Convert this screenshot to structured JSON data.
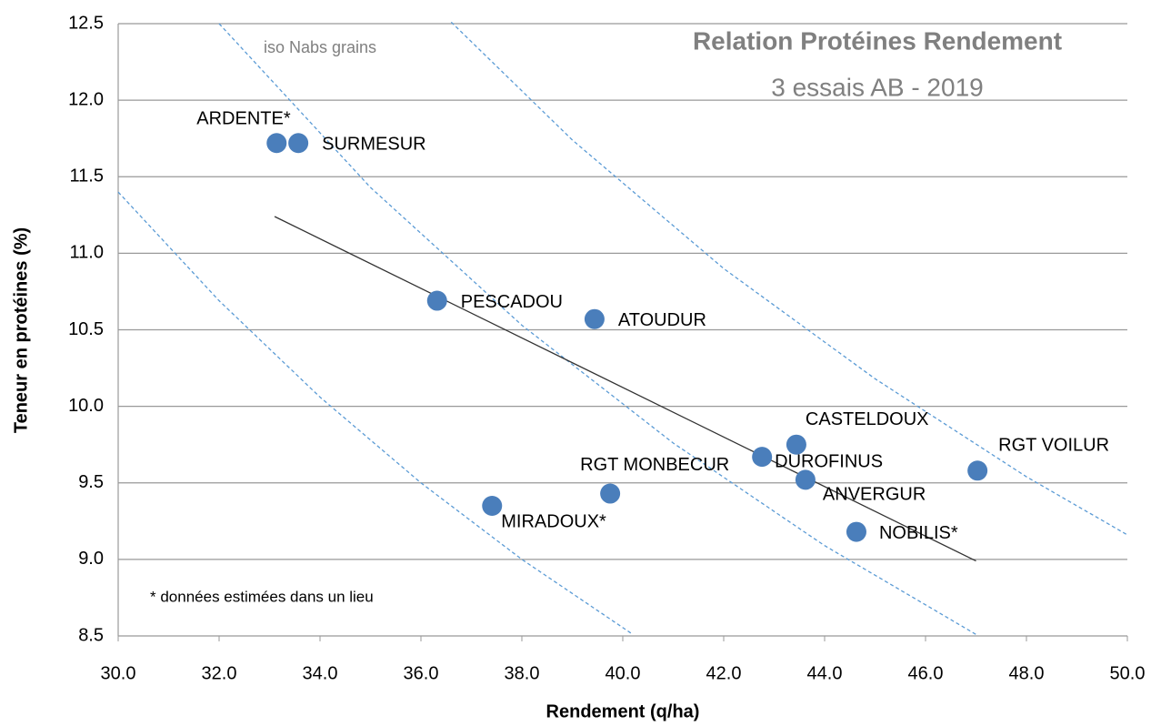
{
  "chart_data": {
    "type": "scatter",
    "title": "Relation Protéines Rendement",
    "subtitle": "3 essais AB - 2019",
    "x_label": "Rendement (q/ha)",
    "y_label": "Teneur en protéines (%)",
    "annotations": [
      "iso Nabs grains",
      "* données estimées dans un lieu"
    ],
    "xlim": [
      30,
      50
    ],
    "ylim": [
      8.5,
      12.5
    ],
    "xticks": [
      {
        "value": 30,
        "label": "30.0"
      },
      {
        "value": 32,
        "label": "32.0"
      },
      {
        "value": 34,
        "label": "34.0"
      },
      {
        "value": 36,
        "label": "36.0"
      },
      {
        "value": 38,
        "label": "38.0"
      },
      {
        "value": 40,
        "label": "40.0"
      },
      {
        "value": 42,
        "label": "42.0"
      },
      {
        "value": 44,
        "label": "44.0"
      },
      {
        "value": 46,
        "label": "46.0"
      },
      {
        "value": 48,
        "label": "48.0"
      },
      {
        "value": 50,
        "label": "50.0"
      }
    ],
    "yticks": [
      8.5,
      {
        "value": 9,
        "label": "9.0"
      },
      9.5,
      {
        "value": 10,
        "label": "10.0"
      },
      10.5,
      {
        "value": 11,
        "label": "11.0"
      },
      11.5,
      {
        "value": 12,
        "label": "12.0"
      },
      12.5
    ],
    "grid": true,
    "color": "#4a7ebb",
    "points": {
      "labels": [
        "ARDENTE*",
        "SURMESUR",
        "PESCADOU",
        "ATOUDUR",
        "CASTELDOUX",
        "DUROFINUS",
        "ANVERGUR",
        "RGT MONBECUR",
        "MIRADOUX*",
        "NOBILIS*",
        "RGT VOILUR"
      ],
      "x": [
        33.14,
        33.57,
        36.32,
        39.44,
        43.44,
        42.76,
        43.62,
        39.75,
        37.41,
        44.63,
        47.03
      ],
      "y": [
        11.72,
        11.72,
        10.69,
        10.57,
        9.75,
        9.67,
        9.52,
        9.43,
        9.35,
        9.18,
        9.58
      ]
    },
    "trendline": {
      "color": "#333333",
      "x": [
        33.1,
        47.0
      ],
      "y": [
        11.24,
        8.99
      ]
    },
    "iso_curves": [
      {
        "color": "#5b9bd5",
        "x": [
          30,
          32,
          34,
          36,
          38,
          40.2
        ],
        "y": [
          11.4,
          10.69,
          10.06,
          9.5,
          9.0,
          8.51
        ]
      },
      {
        "color": "#5b9bd5",
        "x": [
          32,
          35,
          38,
          41,
          44,
          47
        ],
        "y": [
          12.5,
          11.43,
          10.53,
          9.76,
          9.09,
          8.51
        ]
      },
      {
        "color": "#5b9bd5",
        "x": [
          36.6,
          39,
          42,
          45,
          48,
          50
        ],
        "y": [
          12.51,
          11.74,
          10.9,
          10.18,
          9.54,
          9.16
        ]
      }
    ]
  }
}
